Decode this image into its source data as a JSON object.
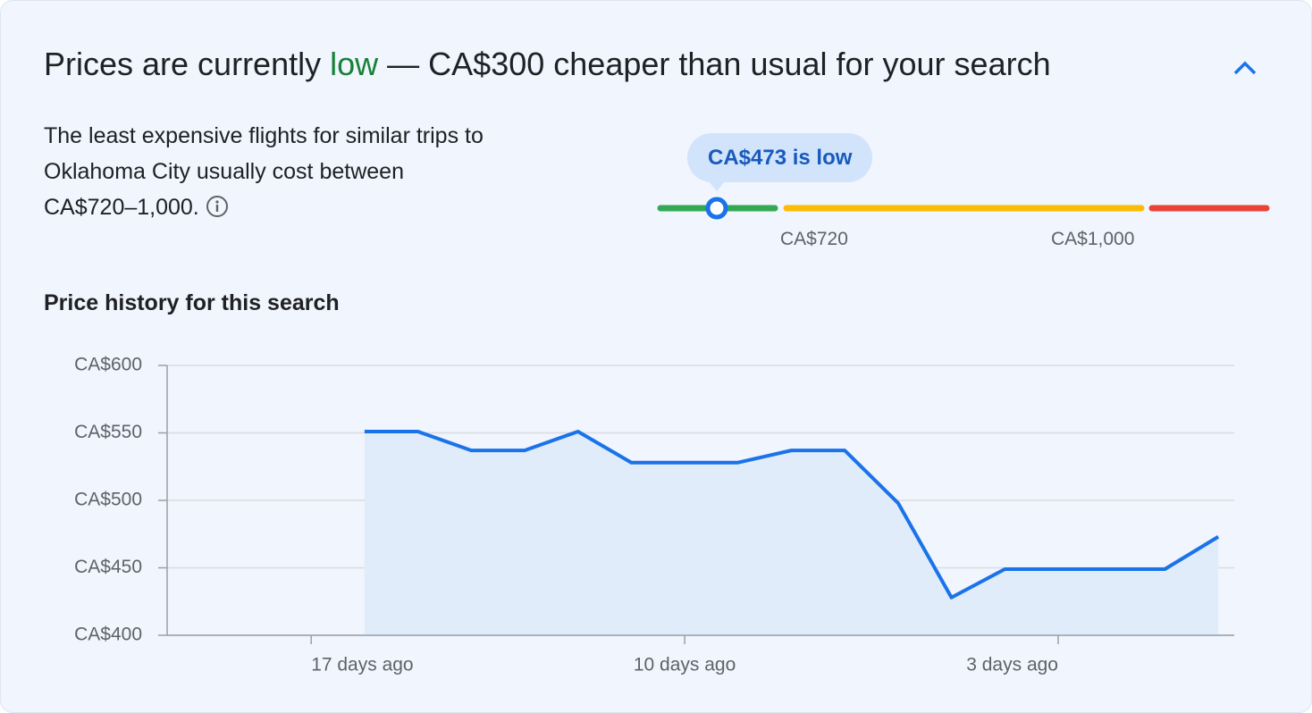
{
  "header": {
    "title_prefix": "Prices are currently",
    "title_highlight": "low",
    "title_suffix": "— CA$300 cheaper than usual for your search"
  },
  "summary": {
    "text": "The least expensive flights for similar trips to Oklahoma City usually cost between CA$720–1,000.",
    "badge": "CA$473 is low",
    "range_labels": [
      "CA$720",
      "CA$1,000"
    ]
  },
  "chart_data": {
    "type": "line",
    "title": "Price history for this search",
    "x": [
      16,
      15,
      14,
      13,
      12,
      11,
      10,
      9,
      8,
      7,
      6,
      5,
      4,
      3,
      2,
      1,
      0
    ],
    "values": [
      551,
      551,
      537,
      537,
      551,
      528,
      528,
      528,
      537,
      537,
      498,
      428,
      449,
      449,
      449,
      449,
      473
    ],
    "color": "#1a73e8",
    "area_color": "#e1ecfb",
    "xlim": [
      19.7,
      -0.3
    ],
    "xticks": [
      {
        "value": 17,
        "label": "17 days ago"
      },
      {
        "value": 10,
        "label": "10 days ago"
      },
      {
        "value": 3,
        "label": "3 days ago"
      }
    ],
    "ylim": [
      400,
      600
    ],
    "yticks": [
      {
        "value": 400,
        "label": "CA$400"
      },
      {
        "value": 450,
        "label": "CA$450"
      },
      {
        "value": 500,
        "label": "CA$500"
      },
      {
        "value": 550,
        "label": "CA$550"
      },
      {
        "value": 600,
        "label": "CA$600"
      }
    ],
    "grid": true
  }
}
